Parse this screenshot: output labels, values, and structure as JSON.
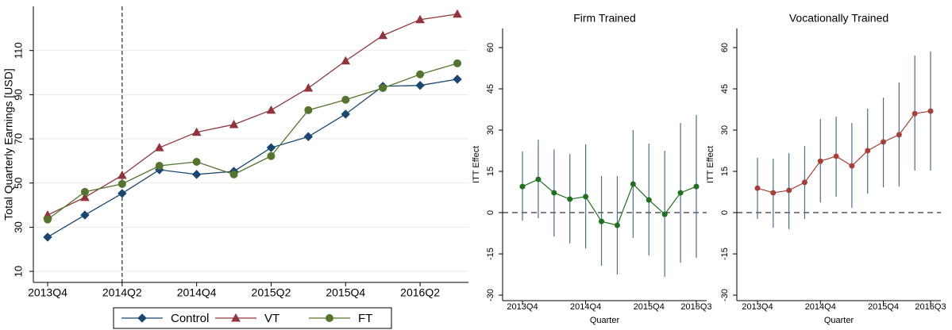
{
  "chart_data": [
    {
      "type": "line",
      "ylabel": "Total Quarterly Earnings [USD]",
      "categories": [
        "2013Q4",
        null,
        "2014Q2",
        null,
        "2014Q4",
        null,
        "2015Q2",
        null,
        "2015Q4",
        null,
        "2016Q2",
        null
      ],
      "reference_x": "2014Q2",
      "ylim": [
        5,
        130
      ],
      "yticks": [
        10,
        30,
        50,
        70,
        90,
        110
      ],
      "grid": true,
      "legend": "bottom",
      "series": [
        {
          "name": "Control",
          "color": "#1a476f",
          "marker": "diamond",
          "values": [
            25.5,
            35.5,
            45.3,
            56,
            53.9,
            55.3,
            66,
            71,
            81.2,
            93.8,
            94.2,
            97
          ]
        },
        {
          "name": "VT",
          "color": "#90353b",
          "marker": "triangle",
          "values": [
            35.5,
            43.5,
            53.5,
            66,
            73,
            76.5,
            83,
            93,
            105.3,
            116.8,
            124,
            126.5
          ]
        },
        {
          "name": "FT",
          "color": "#55752f",
          "marker": "circle",
          "values": [
            33.5,
            46,
            49.6,
            57.8,
            59.6,
            53.9,
            62.2,
            83,
            87.7,
            93,
            99.2,
            104.2
          ]
        }
      ]
    },
    {
      "type": "errorbar",
      "title": "Firm Trained",
      "xlabel": "Quarter",
      "ylabel": "ITT Effect",
      "categories": [
        "2013Q4",
        null,
        null,
        null,
        "2014Q4",
        null,
        null,
        null,
        "2015Q4",
        null,
        null,
        "2016Q3"
      ],
      "ylim": [
        -32,
        67
      ],
      "yticks": [
        -30,
        -15,
        0,
        15,
        30,
        45,
        60
      ],
      "reference_y": 0,
      "grid": false,
      "color": "#1f6f1f",
      "ci_color": "#4a6e8f",
      "values": [
        9.5,
        12.1,
        7.2,
        4.9,
        5.8,
        -3.2,
        -4.6,
        10.4,
        4.6,
        -0.6,
        7.2,
        9.5
      ],
      "ci_low": [
        -3,
        -2,
        -8.7,
        -11.2,
        -13,
        -19.3,
        -22.5,
        -9.2,
        -15.6,
        -23.4,
        -18.2,
        -16.4
      ],
      "ci_high": [
        22.2,
        26.5,
        23,
        21.3,
        24.8,
        13.3,
        13.3,
        30,
        25.1,
        22.5,
        32.6,
        35.5
      ]
    },
    {
      "type": "errorbar",
      "title": "Vocationally Trained",
      "xlabel": "Quarter",
      "ylabel": "ITT Effect",
      "categories": [
        "2013Q4",
        null,
        null,
        null,
        "2014Q4",
        null,
        null,
        null,
        "2015Q4",
        null,
        null,
        "2016Q3"
      ],
      "ylim": [
        -32,
        67
      ],
      "yticks": [
        -30,
        -15,
        0,
        15,
        30,
        45,
        60
      ],
      "reference_y": 0,
      "grid": false,
      "color": "#a8403a",
      "ci_color": "#4a6e8f",
      "values": [
        8.9,
        7.2,
        8.1,
        11,
        18.7,
        20.5,
        17,
        22.5,
        25.7,
        28.3,
        36,
        36.9
      ],
      "ci_low": [
        -2.3,
        -5.5,
        -6,
        -2.3,
        3.7,
        5.8,
        1.7,
        6.9,
        9.2,
        9.5,
        15.3,
        15.3
      ],
      "ci_high": [
        19.9,
        19.6,
        21.6,
        24.2,
        34,
        34.9,
        32.6,
        37.8,
        41.8,
        47.3,
        57.1,
        58.6
      ]
    }
  ]
}
